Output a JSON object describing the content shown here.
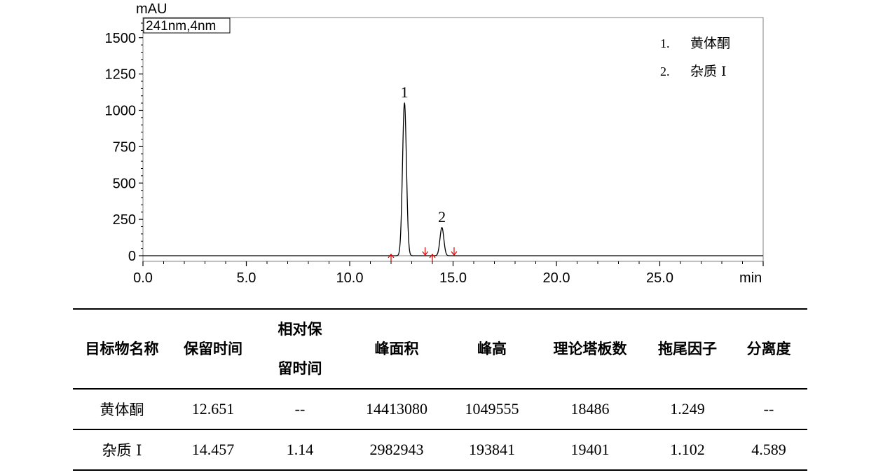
{
  "chart_data": {
    "type": "line",
    "title": "",
    "xlabel": "min",
    "ylabel": "mAU",
    "box_label": "241nm,4nm",
    "xlim": [
      0,
      30
    ],
    "ylim": [
      -40,
      1660
    ],
    "x_ticks": [
      0.0,
      5.0,
      10.0,
      15.0,
      20.0,
      25.0
    ],
    "x_tick_labels": [
      "0.0",
      "5.0",
      "10.0",
      "15.0",
      "20.0",
      "25.0"
    ],
    "y_ticks": [
      0,
      250,
      500,
      750,
      1000,
      1250,
      1500
    ],
    "y_tick_labels": [
      "0",
      "250",
      "500",
      "750",
      "1000",
      "1250",
      "1500"
    ],
    "peaks": [
      {
        "label": "1",
        "retention_time": 12.65,
        "height_mau": 1049.555,
        "width_min": 0.095
      },
      {
        "label": "2",
        "retention_time": 14.46,
        "height_mau": 193.841,
        "width_min": 0.093
      }
    ],
    "integration_markers": [
      {
        "x": 12.0,
        "direction": "up"
      },
      {
        "x": 13.65,
        "direction": "down"
      },
      {
        "x": 14.0,
        "direction": "up"
      },
      {
        "x": 15.05,
        "direction": "down"
      }
    ],
    "marker_color": "#e00000",
    "legend": [
      {
        "number": "1.",
        "name": "黄体酮"
      },
      {
        "number": "2.",
        "name": "杂质 I"
      }
    ],
    "legend_position": "top-right"
  },
  "table": {
    "headers": [
      {
        "line1": "目标物名称"
      },
      {
        "line1": "保留时间"
      },
      {
        "line1": "相对保",
        "line2": "留时间"
      },
      {
        "line1": "峰面积"
      },
      {
        "line1": "峰高"
      },
      {
        "line1": "理论塔板数"
      },
      {
        "line1": "拖尾因子"
      },
      {
        "line1": "分离度"
      }
    ],
    "rows": [
      [
        "黄体酮",
        "12.651",
        "--",
        "14413080",
        "1049555",
        "18486",
        "1.249",
        "--"
      ],
      [
        "杂质 I",
        "14.457",
        "1.14",
        "2982943",
        "193841",
        "19401",
        "1.102",
        "4.589"
      ]
    ]
  }
}
